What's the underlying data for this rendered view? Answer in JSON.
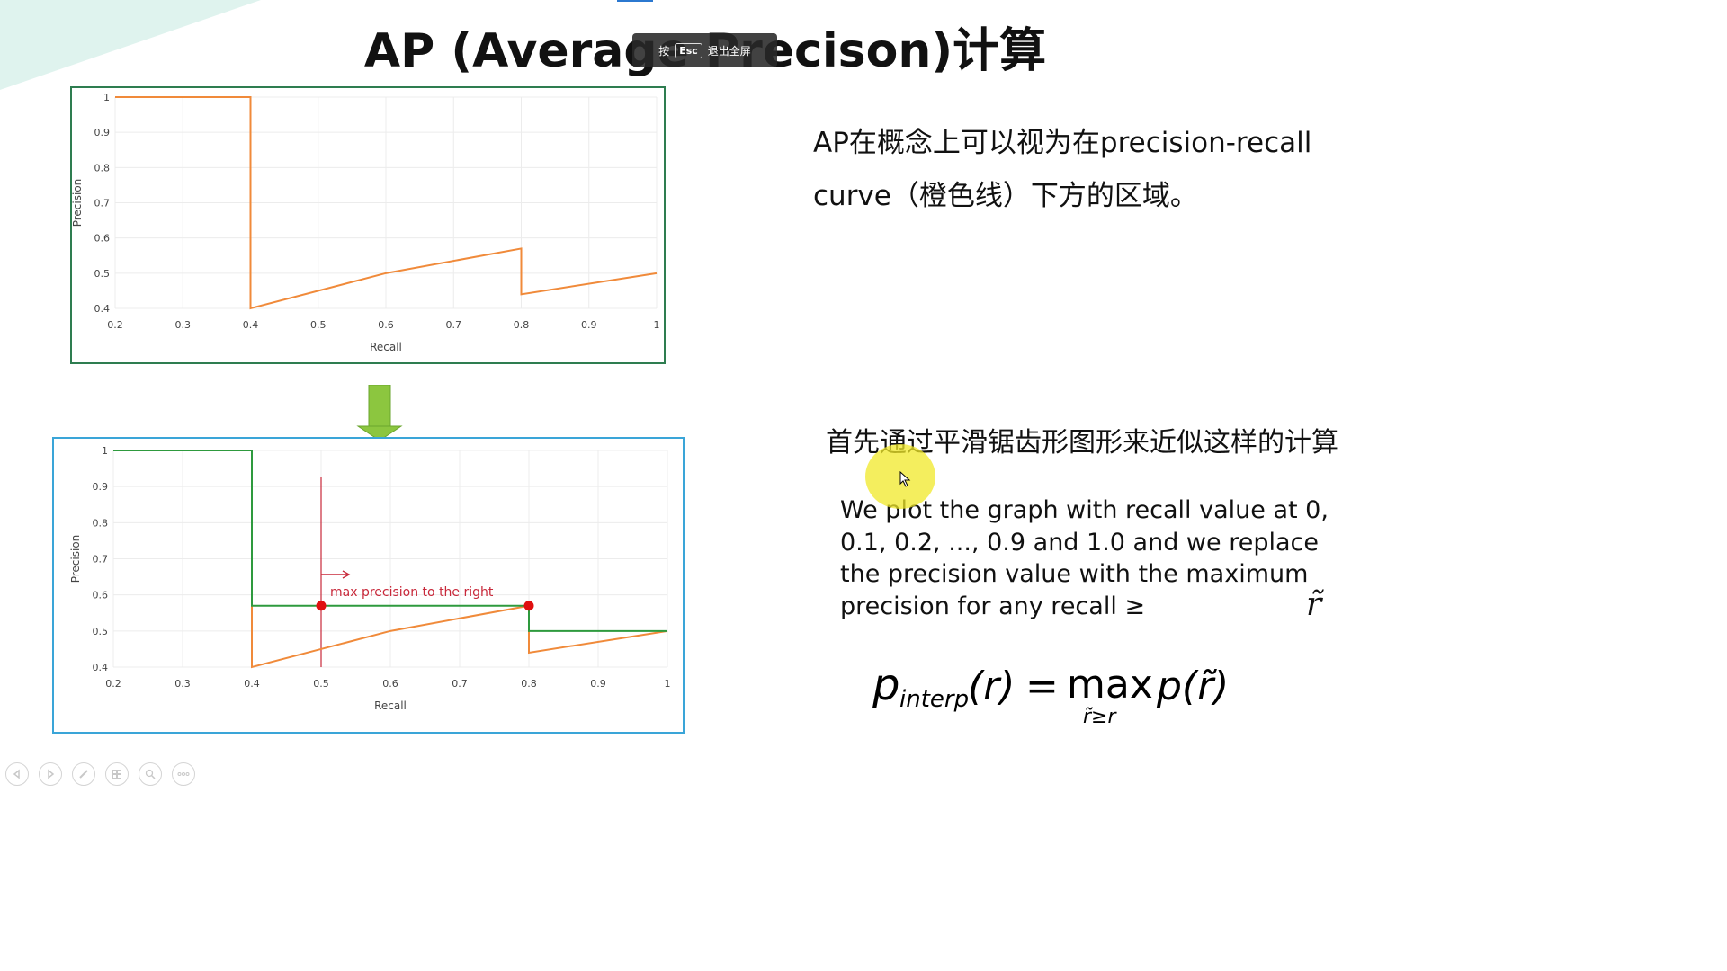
{
  "slide": {
    "title": "AP (Average Precison)计算",
    "esc_hint": {
      "prefix": "按",
      "key": "Esc",
      "suffix": "退出全屏"
    },
    "desc_ap": "AP在概念上可以视为在precision-recall curve（橙色线）下方的区域。",
    "desc_smooth": "首先通过平滑锯齿形图形来近似这样的计算",
    "desc_method": "We plot the graph with recall  value at 0, 0.1, 0.2, ..., 0.9 and 1.0 and we replace the precision value with the maximum precision for any recall ≥",
    "desc_method_symbol": "r̃",
    "formula": {
      "lhs": "p",
      "lhs_sub": "interp",
      "arg": "(r)",
      "eq": "=",
      "op": "max",
      "op_sub": "r̃≥r",
      "rhs": "p(r̃)"
    }
  },
  "chart_data": [
    {
      "type": "line",
      "title": "",
      "xlabel": "Recall",
      "ylabel": "Precision",
      "xlim": [
        0.2,
        1.0
      ],
      "ylim": [
        0.4,
        1.0
      ],
      "x_ticks": [
        "0.2",
        "0.3",
        "0.4",
        "0.5",
        "0.6",
        "0.7",
        "0.8",
        "0.9",
        "1"
      ],
      "y_ticks": [
        "1",
        "0.9",
        "0.8",
        "0.7",
        "0.6",
        "0.5",
        "0.4"
      ],
      "grid": true,
      "series": [
        {
          "color": "#f08a3a",
          "x": [
            0.2,
            0.4,
            0.4,
            0.6,
            0.8,
            0.8,
            1.0
          ],
          "y": [
            1.0,
            1.0,
            0.4,
            0.5,
            0.57,
            0.44,
            0.5
          ]
        }
      ]
    },
    {
      "type": "line",
      "title": "",
      "xlabel": "Recall",
      "ylabel": "Precision",
      "xlim": [
        0.2,
        1.0
      ],
      "ylim": [
        0.4,
        1.0
      ],
      "x_ticks": [
        "0.2",
        "0.3",
        "0.4",
        "0.5",
        "0.6",
        "0.7",
        "0.8",
        "0.9",
        "1"
      ],
      "y_ticks": [
        "1",
        "0.9",
        "0.8",
        "0.7",
        "0.6",
        "0.5",
        "0.4"
      ],
      "grid": true,
      "series": [
        {
          "color": "#f08a3a",
          "x": [
            0.4,
            0.4,
            0.6,
            0.8,
            0.8,
            1.0
          ],
          "y": [
            0.57,
            0.4,
            0.5,
            0.57,
            0.44,
            0.5
          ]
        },
        {
          "color": "#2e9a3e",
          "x": [
            0.2,
            0.4,
            0.4,
            0.8,
            0.8,
            1.0
          ],
          "y": [
            1.0,
            1.0,
            0.57,
            0.57,
            0.5,
            0.5
          ]
        }
      ],
      "points": [
        {
          "x": 0.5,
          "y": 0.57
        },
        {
          "x": 0.8,
          "y": 0.57
        }
      ],
      "marker_color": "#e01010",
      "vline": {
        "x": 0.5,
        "color": "#c8283a"
      },
      "annotation": "max precision to the right"
    }
  ],
  "toolbar": {
    "buttons": [
      "prev-icon",
      "next-icon",
      "pen-icon",
      "grid-icon",
      "zoom-icon",
      "more-icon"
    ]
  }
}
